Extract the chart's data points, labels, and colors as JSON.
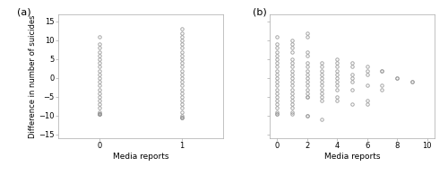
{
  "panel_a": {
    "x0_points": [
      0,
      0,
      0,
      0,
      0,
      0,
      0,
      0,
      0,
      0,
      0,
      0,
      0,
      0,
      0,
      0,
      0,
      0,
      0,
      0,
      0,
      0,
      0,
      0,
      0,
      0
    ],
    "y0_points": [
      11,
      9,
      8,
      7,
      6,
      5,
      4,
      3,
      2,
      1,
      0,
      -1,
      -2,
      -3,
      -4,
      -5,
      -6,
      -7,
      -8,
      -9,
      -9.5,
      -9.5,
      -9.5,
      -9.5,
      -9.5,
      -9.5
    ],
    "x1_points": [
      1,
      1,
      1,
      1,
      1,
      1,
      1,
      1,
      1,
      1,
      1,
      1,
      1,
      1,
      1,
      1,
      1,
      1,
      1,
      1,
      1,
      1,
      1,
      1,
      1,
      1,
      1
    ],
    "y1_points": [
      13,
      12,
      11,
      10,
      9,
      8,
      7,
      6,
      5,
      4,
      3,
      2,
      1,
      0,
      -1,
      -2,
      -3,
      -4,
      -5,
      -6,
      -7,
      -8,
      -9,
      -10,
      -10.5,
      -10.5,
      -10.5
    ],
    "xlabel": "Media reports",
    "ylabel": "Difference in number of suicides",
    "xlim": [
      -0.5,
      1.5
    ],
    "ylim": [
      -16,
      17
    ],
    "xticks": [
      0,
      1
    ],
    "yticks": [
      -15,
      -10,
      -5,
      0,
      5,
      10,
      15
    ],
    "label": "(a)"
  },
  "panel_b": {
    "data": {
      "0": [
        11,
        9,
        8,
        7,
        6,
        5,
        4,
        3,
        2,
        1,
        0,
        -1,
        -2,
        -3,
        -4,
        -5,
        -6,
        -7,
        -8,
        -9,
        -9.5,
        -9.5
      ],
      "1": [
        10,
        9,
        8,
        7,
        5,
        4,
        3,
        2,
        1,
        0,
        -1,
        -2,
        -3,
        -4,
        -5,
        -6,
        -7,
        -8,
        -9,
        -9.5
      ],
      "2": [
        12,
        11,
        7,
        6,
        4,
        3,
        2,
        1,
        0,
        -1,
        -2,
        -3,
        -4,
        -5,
        -5,
        -10,
        -10
      ],
      "3": [
        4,
        3,
        2,
        1,
        0,
        -1,
        -2,
        -3,
        -4,
        -5,
        -6,
        -11
      ],
      "4": [
        5,
        4,
        3,
        2,
        1,
        0,
        -1,
        -2,
        -3,
        -5,
        -6
      ],
      "5": [
        4,
        3,
        1,
        0,
        -1,
        -3,
        -7
      ],
      "6": [
        3,
        2,
        1,
        -2,
        -6,
        -7
      ],
      "7": [
        2,
        2,
        -2,
        -3
      ],
      "8": [
        0,
        0
      ],
      "9": [
        -1,
        -1
      ]
    },
    "xlabel": "Media reports",
    "ylabel": "",
    "xlim": [
      -0.5,
      10.5
    ],
    "ylim": [
      -16,
      17
    ],
    "xticks": [
      0,
      2,
      4,
      6,
      8,
      10
    ],
    "yticks": [
      -15,
      -10,
      -5,
      0,
      5,
      10,
      15
    ],
    "label": "(b)"
  },
  "marker_style": "o",
  "marker_size": 2.5,
  "marker_color": "none",
  "marker_edge_color": "#999999",
  "marker_edge_width": 0.6,
  "background_color": "#ffffff",
  "plot_bg_color": "#ffffff",
  "spine_color": "#aaaaaa",
  "tick_color": "#555555"
}
